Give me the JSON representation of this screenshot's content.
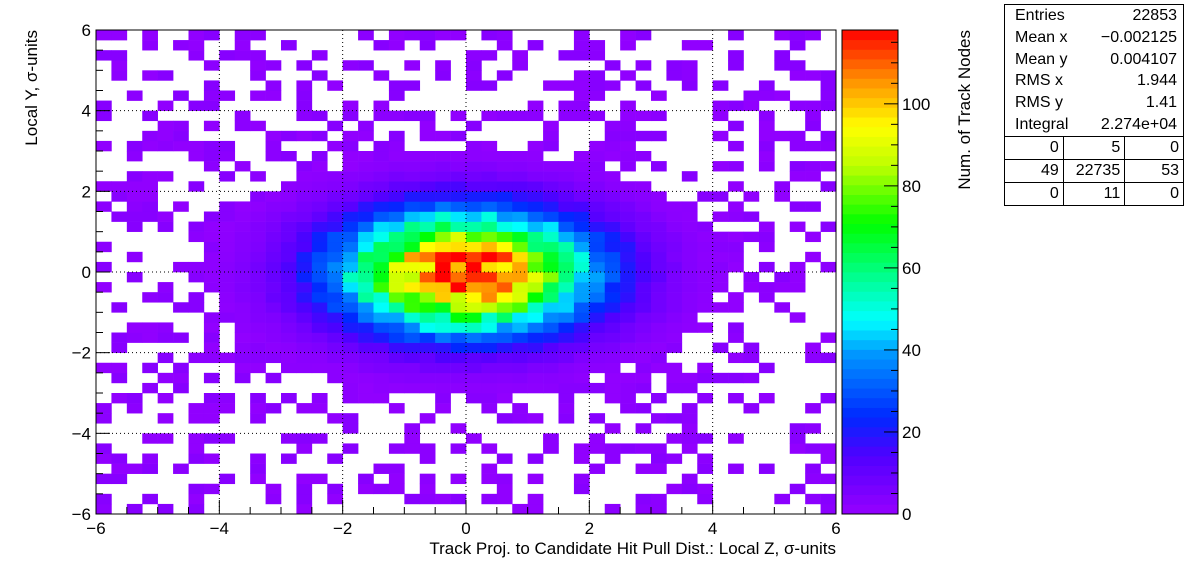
{
  "chart_data": {
    "type": "heatmap",
    "title": "",
    "xlabel": "Track Proj. to Candidate Hit Pull Dist.: Local Z, σ-units",
    "ylabel": "Local Y, σ-units",
    "zlabel": "Num. of Track Nodes",
    "xlim": [
      -6,
      6
    ],
    "ylim": [
      -6,
      6
    ],
    "zlim": [
      0,
      118
    ],
    "nbins_x": 48,
    "nbins_y": 48,
    "grid": true,
    "x_ticks": [
      "−6",
      "−4",
      "−2",
      "0",
      "2",
      "4",
      "6"
    ],
    "y_ticks": [
      "−6",
      "−4",
      "−2",
      "0",
      "2",
      "4",
      "6"
    ],
    "z_ticks": [
      "0",
      "20",
      "40",
      "60",
      "80",
      "100"
    ],
    "distribution": {
      "shape": "2D Gaussian",
      "mean_x": -0.002125,
      "mean_y": 0.004107,
      "rms_x": 1.944,
      "rms_y": 1.41,
      "peak": 118
    }
  },
  "stats_box": {
    "rows": [
      {
        "label": "Entries",
        "value": "22853"
      },
      {
        "label": "Mean x",
        "value": "−0.002125"
      },
      {
        "label": "Mean y",
        "value": "0.004107"
      },
      {
        "label": "RMS x",
        "value": "1.944"
      },
      {
        "label": "RMS y",
        "value": "1.41"
      },
      {
        "label": "Integral",
        "value": "2.274e+04"
      }
    ],
    "overflow_grid": [
      [
        "0",
        "5",
        "0"
      ],
      [
        "49",
        "22735",
        "53"
      ],
      [
        "0",
        "11",
        "0"
      ]
    ]
  }
}
